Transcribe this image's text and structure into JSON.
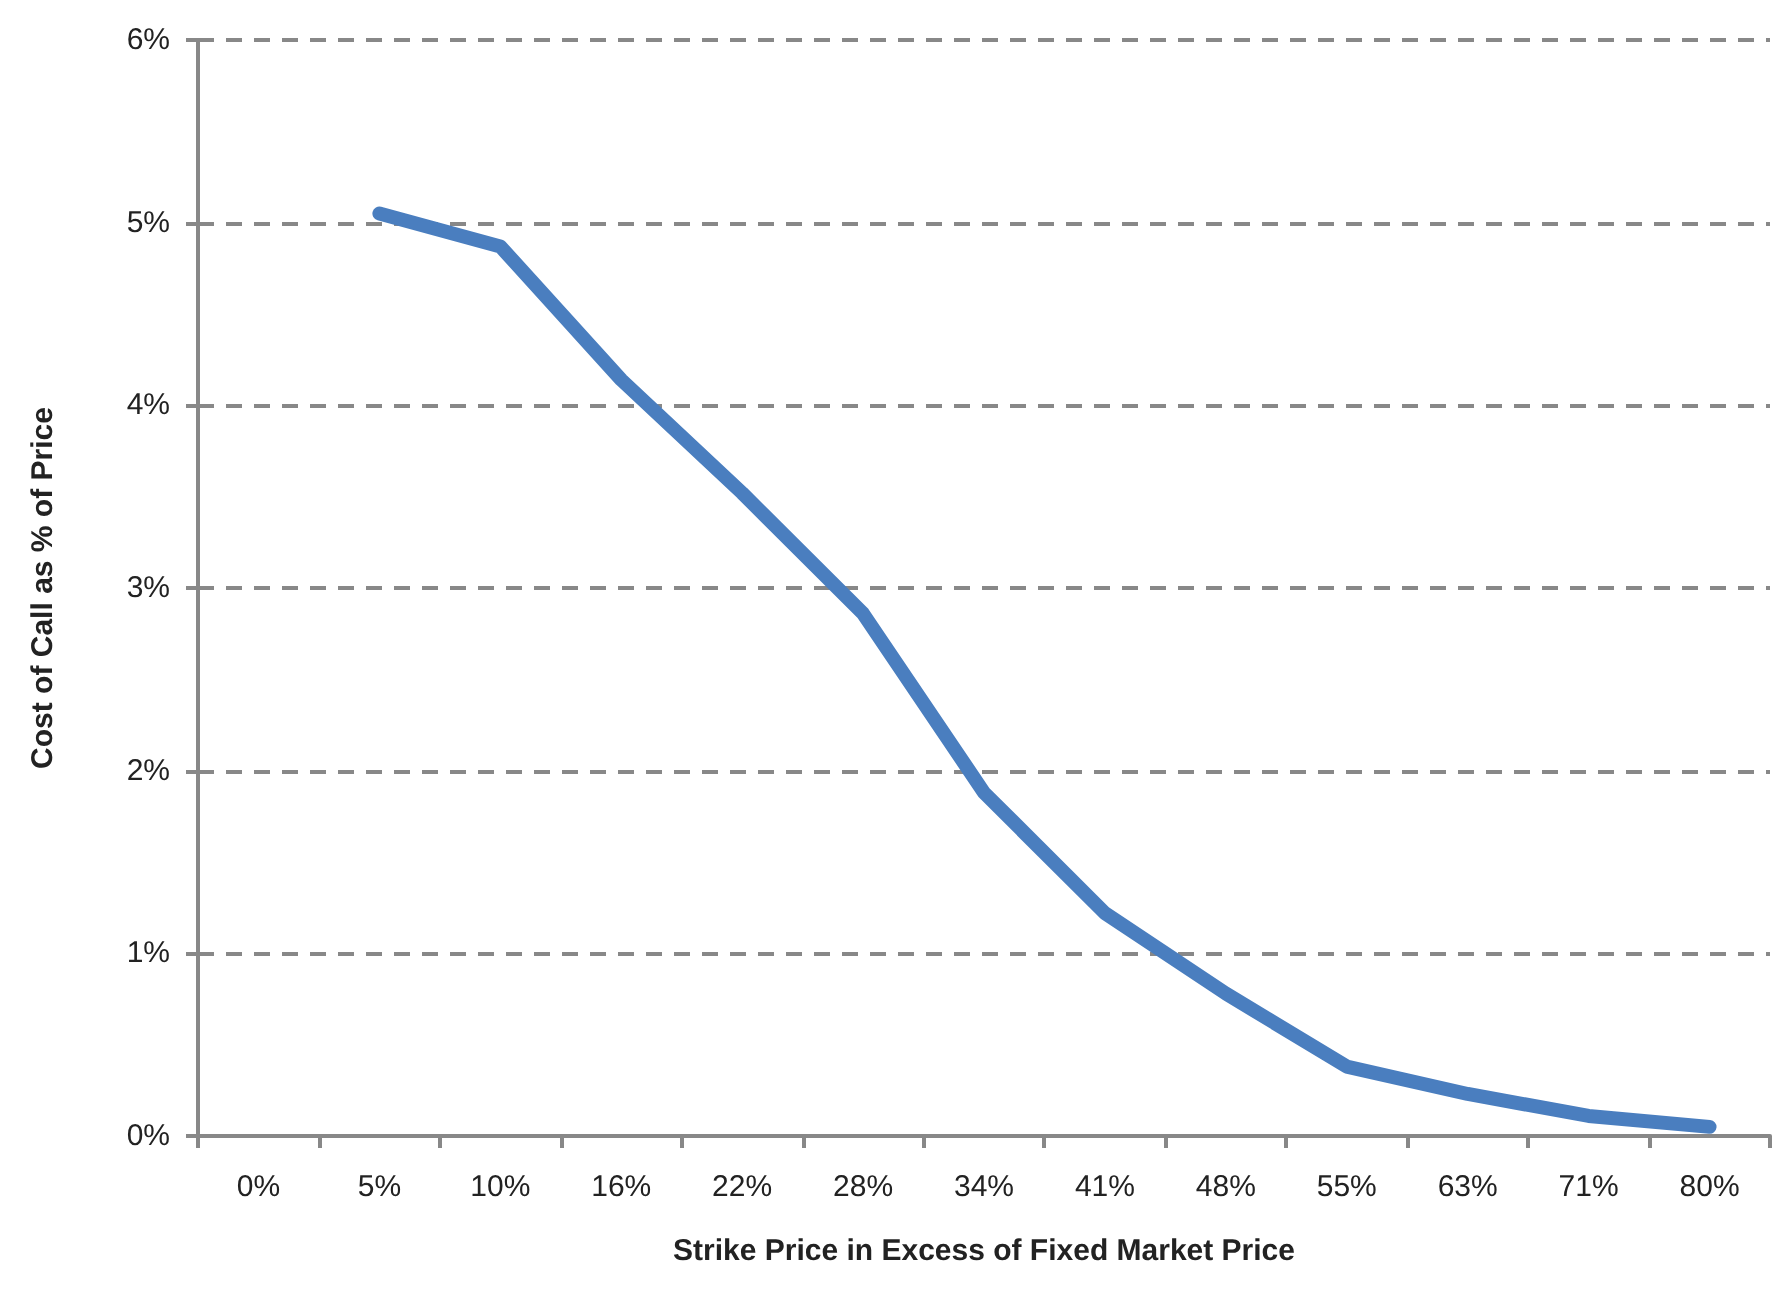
{
  "chart_data": {
    "type": "line",
    "xlabel": "Strike Price in Excess of Fixed Market Price",
    "ylabel": "Cost of Call as % of Price",
    "categories": [
      "0%",
      "5%",
      "10%",
      "16%",
      "22%",
      "28%",
      "34%",
      "41%",
      "48%",
      "55%",
      "63%",
      "71%",
      "80%"
    ],
    "series": [
      {
        "color": "#4a7ebf",
        "values": [
          null,
          5.05,
          4.87,
          4.14,
          3.52,
          2.86,
          1.88,
          1.22,
          0.78,
          0.38,
          0.23,
          0.11,
          0.05
        ]
      }
    ],
    "ylim": [
      0,
      6
    ],
    "yticks": [
      {
        "value": 0,
        "label": "0%"
      },
      {
        "value": 1,
        "label": "1%"
      },
      {
        "value": 2,
        "label": "2%"
      },
      {
        "value": 3,
        "label": "3%"
      },
      {
        "value": 4,
        "label": "4%"
      },
      {
        "value": 5,
        "label": "5%"
      },
      {
        "value": 6,
        "label": "6%"
      }
    ],
    "grid": "y",
    "marker": "none"
  }
}
